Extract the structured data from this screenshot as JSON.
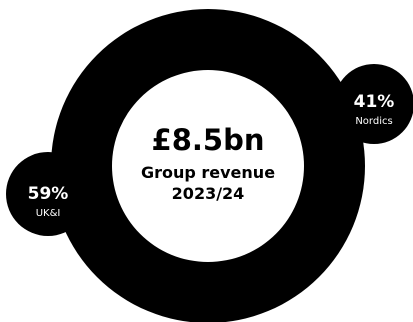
{
  "chart_data": {
    "type": "pie",
    "center": {
      "value": "£8.5bn",
      "label_line1": "Group revenue",
      "label_line2": "2023/24"
    },
    "segments": [
      {
        "name": "UK&I",
        "value": 59,
        "value_label": "59%"
      },
      {
        "name": "Nordics",
        "value": 41,
        "value_label": "41%"
      }
    ],
    "colors": {
      "ring": "#000000",
      "bubble": "#000000",
      "bubble_text": "#ffffff",
      "center_fill": "#ffffff",
      "center_text": "#000000"
    }
  }
}
